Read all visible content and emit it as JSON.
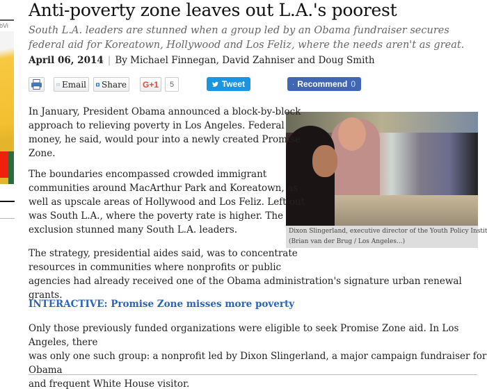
{
  "ad": {
    "label": "obVi"
  },
  "article": {
    "title": "Anti-poverty zone leaves out L.A.'s poorest",
    "subtitle": "South L.A. leaders are stunned when a group led by an Obama fundraiser secures federal aid for Koreatown, Hollywood and Los Feliz, where the needs aren't as great.",
    "date": "April 06, 2014",
    "separator": "|",
    "byline": "By Michael Finnegan, David Zahniser and Doug Smith"
  },
  "share": {
    "email": "Email",
    "share": "Share",
    "gplus": "G+1",
    "gplus_count": "5",
    "tweet": "Tweet",
    "recommend": "Recommend",
    "recommend_count": "0"
  },
  "figure": {
    "caption": "Dixon Slingerland, executive director of the Youth Policy Institute,...",
    "credit": "(Brian van der Brug / Los Angeles...)"
  },
  "paragraphs": [
    [
      "In January, President Obama announced a block-by-block",
      "approach to relieving poverty in Los Angeles. Federal",
      "money, he said, would pour into a newly created Promise",
      "Zone."
    ],
    [
      "The boundaries encompassed crowded immigrant",
      "communities around MacArthur Park and Koreatown, as",
      "well as upscale areas of Hollywood and Los Feliz. Left out",
      "was South L.A., where the poverty rate is higher. The",
      "exclusion stunned many South L.A. leaders."
    ],
    [
      "The strategy, presidential aides said, was to concentrate",
      "resources in communities where nonprofits or public",
      "agencies had already received one of the Obama administration's signature urban renewal grants."
    ],
    [
      "Only those previously funded organizations were eligible to seek Promise Zone aid. In Los Angeles, there",
      "was only one such group: a nonprofit led by Dixon Slingerland, a major campaign fundraiser for Obama",
      "and frequent White House visitor."
    ]
  ],
  "interactive_link": "INTERACTIVE: Promise Zone misses more poverty",
  "colors": {
    "link": "#2b63b8",
    "twitter": "#1b95e0",
    "facebook": "#4267b2",
    "gplus": "#dd4b39"
  }
}
